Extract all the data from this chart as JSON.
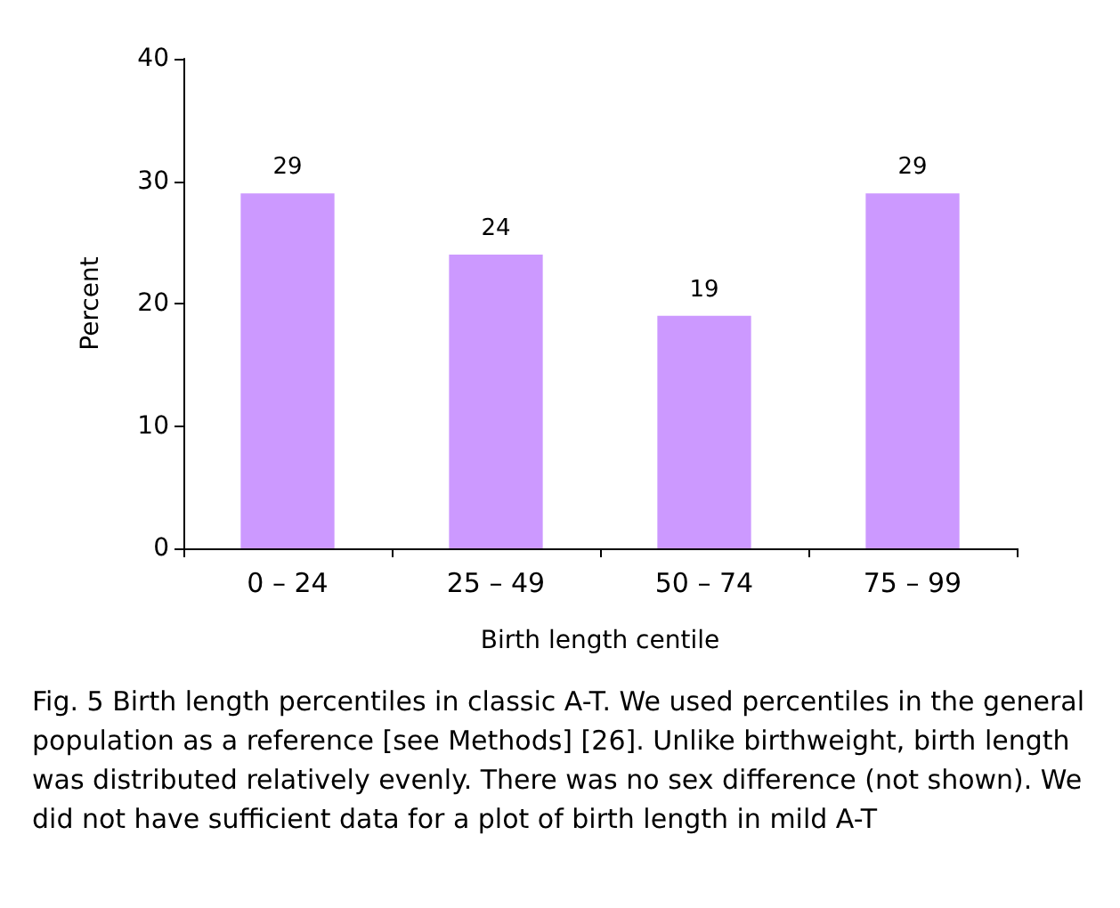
{
  "chart_data": {
    "type": "bar",
    "categories": [
      "0 – 24",
      "25 – 49",
      "50 – 74",
      "75 – 99"
    ],
    "values": [
      29,
      24,
      19,
      29
    ],
    "color": "#cc99ff",
    "data_labels": true,
    "ylim": [
      0,
      40
    ],
    "yticks": [
      0,
      10,
      20,
      30,
      40
    ],
    "ylabel": "Percent",
    "xlabel": "Birth length centile",
    "grid": false,
    "annotations": [
      "Fig. 5  Birth length percentiles in classic A-T. We used percentiles in the general population as a reference [see Methods] [26]. Unlike birthweight, birth length was distributed relatively evenly. There was no sex difference (not shown). We did not have sufficient data for a plot of birth length in mild A-T"
    ]
  }
}
